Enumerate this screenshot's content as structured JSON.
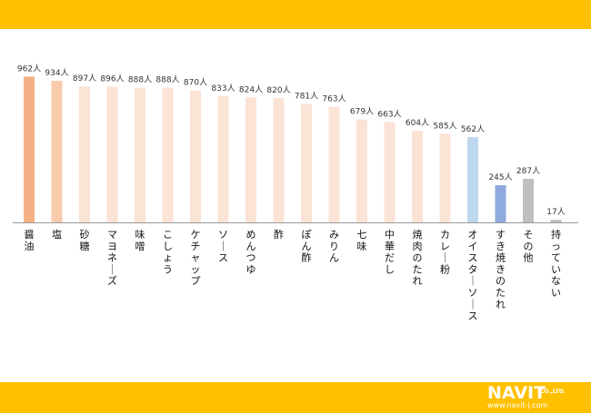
{
  "chart_data": {
    "type": "bar",
    "unit": "人",
    "categories": [
      "醤油",
      "塩",
      "砂糖",
      "マヨネーズ",
      "味噌",
      "こしょう",
      "ケチャップ",
      "ソース",
      "めんつゆ",
      "酢",
      "ぽん酢",
      "みりん",
      "七味",
      "中華だし",
      "焼肉のたれ",
      "カレー粉",
      "オイスターソース",
      "すき焼きのたれ",
      "その他",
      "持っていない"
    ],
    "values": [
      962,
      934,
      897,
      896,
      888,
      888,
      870,
      833,
      824,
      820,
      781,
      763,
      679,
      663,
      604,
      585,
      562,
      245,
      287,
      17
    ],
    "value_labels": [
      "962人",
      "934人",
      "897人",
      "896人",
      "888人",
      "888人",
      "870人",
      "833人",
      "824人",
      "820人",
      "781人",
      "763人",
      "679人",
      "663人",
      "604人",
      "585人",
      "562人",
      "245人",
      "287人",
      "17人"
    ],
    "colors": [
      "#f4b183",
      "#f9cbad",
      "#fbe3d6",
      "#fbe3d6",
      "#fbe3d6",
      "#fbe3d6",
      "#fbe3d6",
      "#fbe3d6",
      "#fbe3d6",
      "#fbe3d6",
      "#fbe3d6",
      "#fbe3d6",
      "#fbe3d6",
      "#fbe3d6",
      "#fbe3d6",
      "#fbe3d6",
      "#bdd7ee",
      "#8faadc",
      "#bfbfbf",
      "#bfbfbf"
    ],
    "title": "",
    "xlabel": "",
    "ylabel": "",
    "ylim": [
      0,
      1000
    ],
    "grid": false,
    "legend": "none"
  },
  "logo": {
    "brand": "NAVIT",
    "suffix": "CO.,LTD.",
    "url": "www.navit-j.com"
  }
}
